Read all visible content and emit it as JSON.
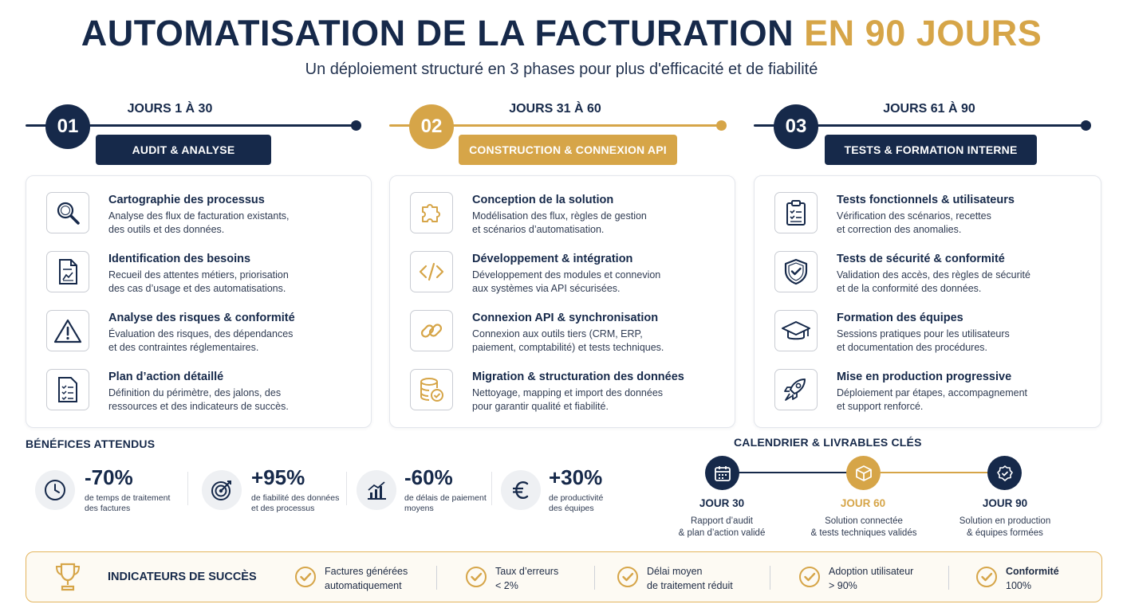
{
  "header": {
    "title_main": "AUTOMATISATION DE LA FACTURATION",
    "title_highlight": "EN 90 JOURS",
    "subtitle": "Un déploiement structuré en 3 phases pour plus d'efficacité et de fiabilité"
  },
  "colors": {
    "navy": "#16294a",
    "gold": "#d6a548"
  },
  "phases": [
    {
      "number": "01",
      "days": "JOURS 1 À 30",
      "label": "AUDIT & ANALYSE",
      "items": [
        {
          "icon": "magnifier-icon",
          "title": "Cartographie des processus",
          "desc1": "Analyse des flux de facturation existants,",
          "desc2": "des outils et des données."
        },
        {
          "icon": "document-chart-icon",
          "title": "Identification des besoins",
          "desc1": "Recueil des attentes métiers, priorisation",
          "desc2": "des cas d’usage et des automatisations."
        },
        {
          "icon": "warning-icon",
          "title": "Analyse des risques & conformité",
          "desc1": "Évaluation des risques, des dépendances",
          "desc2": "et des contraintes réglementaires."
        },
        {
          "icon": "checklist-icon",
          "title": "Plan d’action détaillé",
          "desc1": "Définition du périmètre, des jalons, des",
          "desc2": "ressources et des indicateurs de succès."
        }
      ]
    },
    {
      "number": "02",
      "days": "JOURS 31 À 60",
      "label": "CONSTRUCTION & CONNEXION API",
      "items": [
        {
          "icon": "puzzle-icon",
          "title": "Conception de la solution",
          "desc1": "Modélisation des flux, règles de gestion",
          "desc2": "et scénarios d’automatisation."
        },
        {
          "icon": "code-icon",
          "title": "Développement & intégration",
          "desc1": "Développement des modules et connevion",
          "desc2": "aux systèmes via API sécurisées."
        },
        {
          "icon": "link-icon",
          "title": "Connexion API & synchronisation",
          "desc1": "Connexion aux outils tiers (CRM, ERP,",
          "desc2": "paiement, comptabilité) et tests techniques."
        },
        {
          "icon": "database-check-icon",
          "title": "Migration & structuration des données",
          "desc1": "Nettoyage, mapping et import des données",
          "desc2": "pour garantir qualité et fiabilité."
        }
      ]
    },
    {
      "number": "03",
      "days": "JOURS 61 À 90",
      "label": "TESTS & FORMATION INTERNE",
      "items": [
        {
          "icon": "clipboard-check-icon",
          "title": "Tests fonctionnels & utilisateurs",
          "desc1": "Vérification des scénarios, recettes",
          "desc2": "et correction des anomalies."
        },
        {
          "icon": "shield-check-icon",
          "title": "Tests de sécurité & conformité",
          "desc1": "Validation des accès, des règles de sécurité",
          "desc2": "et de la conformité des données."
        },
        {
          "icon": "graduation-cap-icon",
          "title": "Formation des équipes",
          "desc1": "Sessions pratiques pour les utilisateurs",
          "desc2": "et documentation des procédures."
        },
        {
          "icon": "rocket-icon",
          "title": "Mise en production progressive",
          "desc1": "Déploiement par étapes, accompagnement",
          "desc2": "et support renforcé."
        }
      ]
    }
  ],
  "benefits": {
    "title": "BÉNÉFICES ATTENDUS",
    "items": [
      {
        "icon": "clock-icon",
        "value": "-70%",
        "label1": "de temps de traitement",
        "label2": "des factures"
      },
      {
        "icon": "target-icon",
        "value": "+95%",
        "label1": "de fiabilité des données",
        "label2": "et des processus"
      },
      {
        "icon": "chart-icon",
        "value": "-60%",
        "label1": "de délais de paiement",
        "label2": "moyens"
      },
      {
        "icon": "euro-icon",
        "value": "+30%",
        "label1": "de productivité",
        "label2": "des équipes"
      }
    ]
  },
  "calendar": {
    "title": "CALENDRIER & LIVRABLES CLÉS",
    "items": [
      {
        "icon": "calendar-icon",
        "day": "JOUR 30",
        "desc1": "Rapport d’audit",
        "desc2": "& plan d’action validé"
      },
      {
        "icon": "box-icon",
        "day": "JOUR 60",
        "desc1": "Solution connectée",
        "desc2": "& tests techniques validés"
      },
      {
        "icon": "badge-icon",
        "day": "JOUR 90",
        "desc1": "Solution en production",
        "desc2": "& équipes formées"
      }
    ]
  },
  "success": {
    "title": "INDICATEURS DE SUCCÈS",
    "items": [
      {
        "line1": "Factures générées",
        "line2": "automatiquement"
      },
      {
        "line1": "Taux d’erreurs",
        "line2": "< 2%"
      },
      {
        "line1": "Délai moyen",
        "line2": "de traitement réduit"
      },
      {
        "line1": "Adoption utilisateur",
        "line2": "> 90%"
      },
      {
        "line1": "Conformité",
        "line2": "100%"
      }
    ]
  }
}
